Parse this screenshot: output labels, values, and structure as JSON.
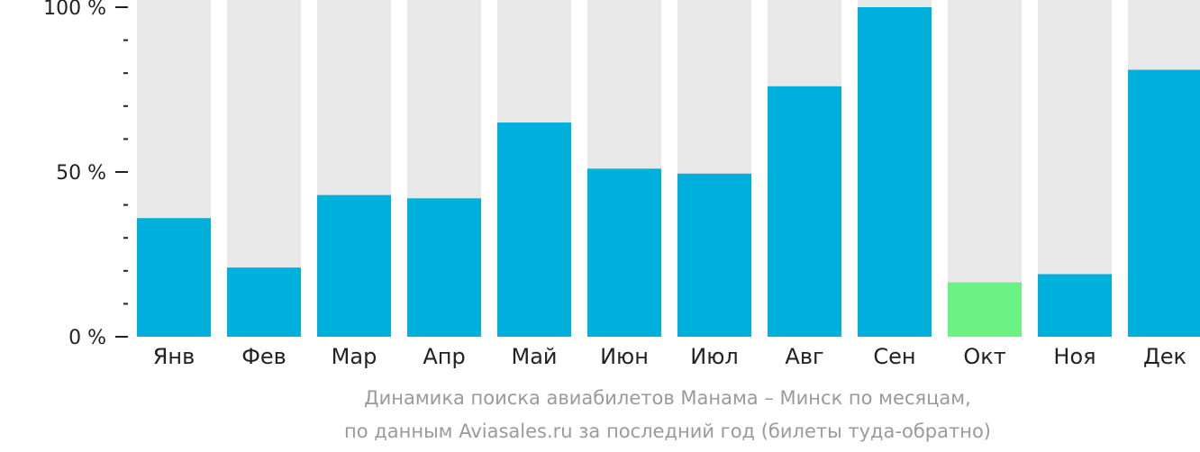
{
  "chart_data": {
    "type": "bar",
    "categories": [
      "Янв",
      "Фев",
      "Мар",
      "Апр",
      "Май",
      "Июн",
      "Июл",
      "Авг",
      "Сен",
      "Окт",
      "Ноя",
      "Дек"
    ],
    "values": [
      36,
      21,
      43,
      42,
      65,
      51,
      49.5,
      76,
      100,
      16.5,
      19,
      81
    ],
    "ylim": [
      0,
      100
    ],
    "yticks": [
      {
        "value": 100,
        "label": "100 %"
      },
      {
        "value": 50,
        "label": "50 %"
      },
      {
        "value": 0,
        "label": "0 %"
      }
    ],
    "minor_ticks": [
      10,
      20,
      30,
      40,
      60,
      70,
      80,
      90
    ],
    "highlight_index": 9,
    "colors": {
      "bar": "#00b0dc",
      "highlight": "#6cf187",
      "background_bar": "#e8e8e8",
      "axis": "#222222"
    }
  },
  "caption": {
    "line1": "Динамика поиска авиабилетов Манама – Минск по месяцам,",
    "line2": "по данным Aviasales.ru за последний год (билеты туда-обратно)"
  }
}
